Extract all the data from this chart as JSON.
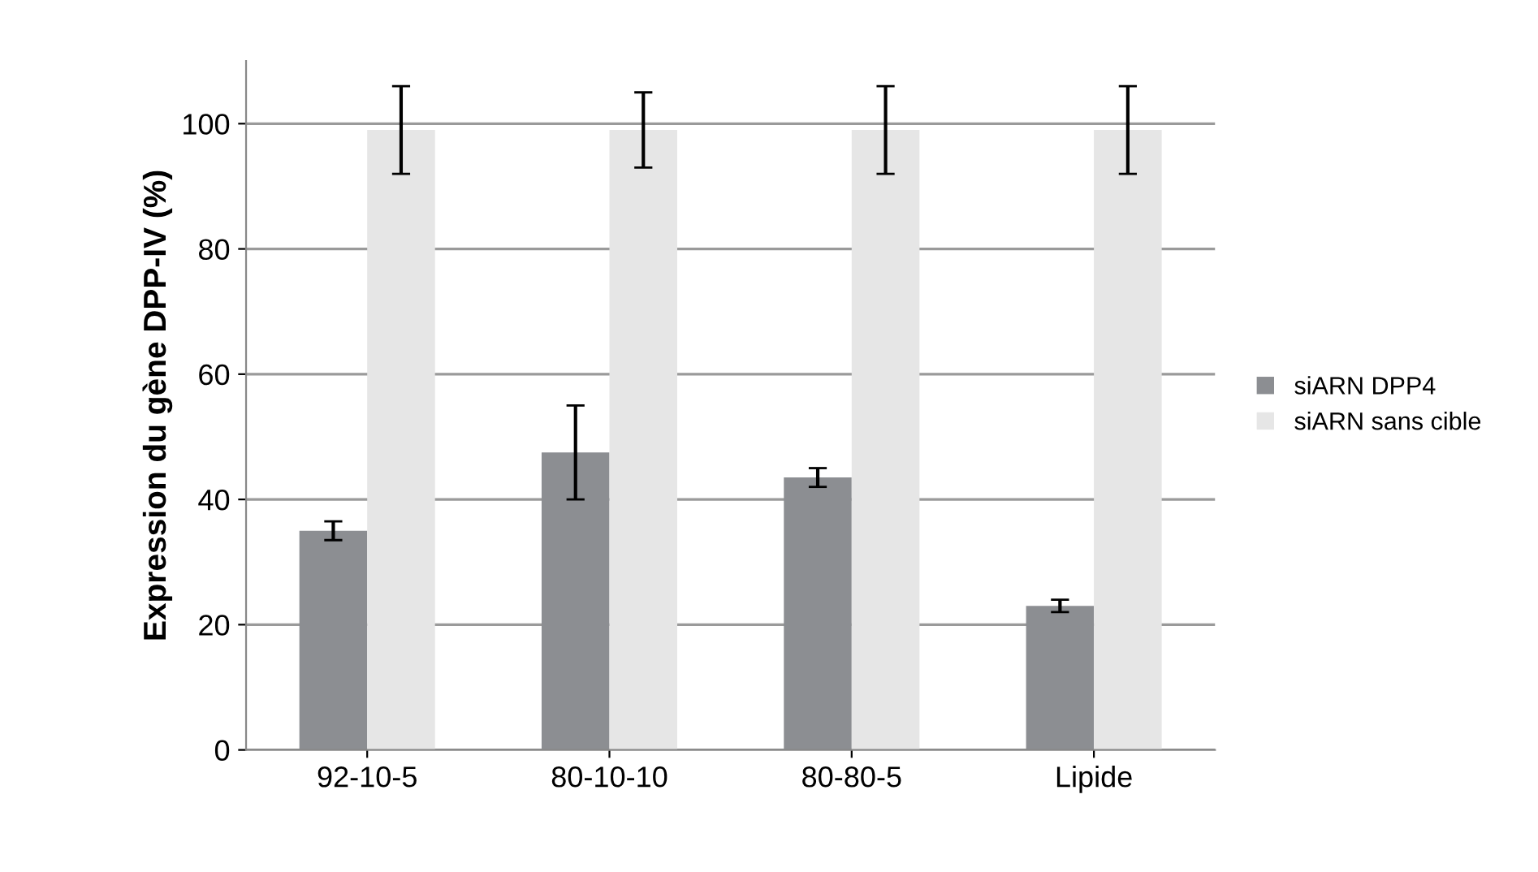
{
  "chart_data": {
    "type": "bar",
    "ylabel": "Expression du gène DPP-IV (%)",
    "categories": [
      "92-10-5",
      "80-10-10",
      "80-80-5",
      "Lipide"
    ],
    "series": [
      {
        "name": "siARN DPP4",
        "color": "#8c8e92",
        "values": [
          35,
          47.5,
          43.5,
          23
        ],
        "errors": [
          1.5,
          7.5,
          1.5,
          1
        ]
      },
      {
        "name": "siARN sans cible",
        "color": "#e6e6e6",
        "values": [
          99,
          99,
          99,
          99
        ],
        "errors": [
          7,
          6,
          7,
          7
        ]
      }
    ],
    "ylim": [
      0,
      110
    ],
    "yticks": [
      0,
      20,
      40,
      60,
      80,
      100
    ],
    "grid": "y",
    "legend": "right"
  }
}
